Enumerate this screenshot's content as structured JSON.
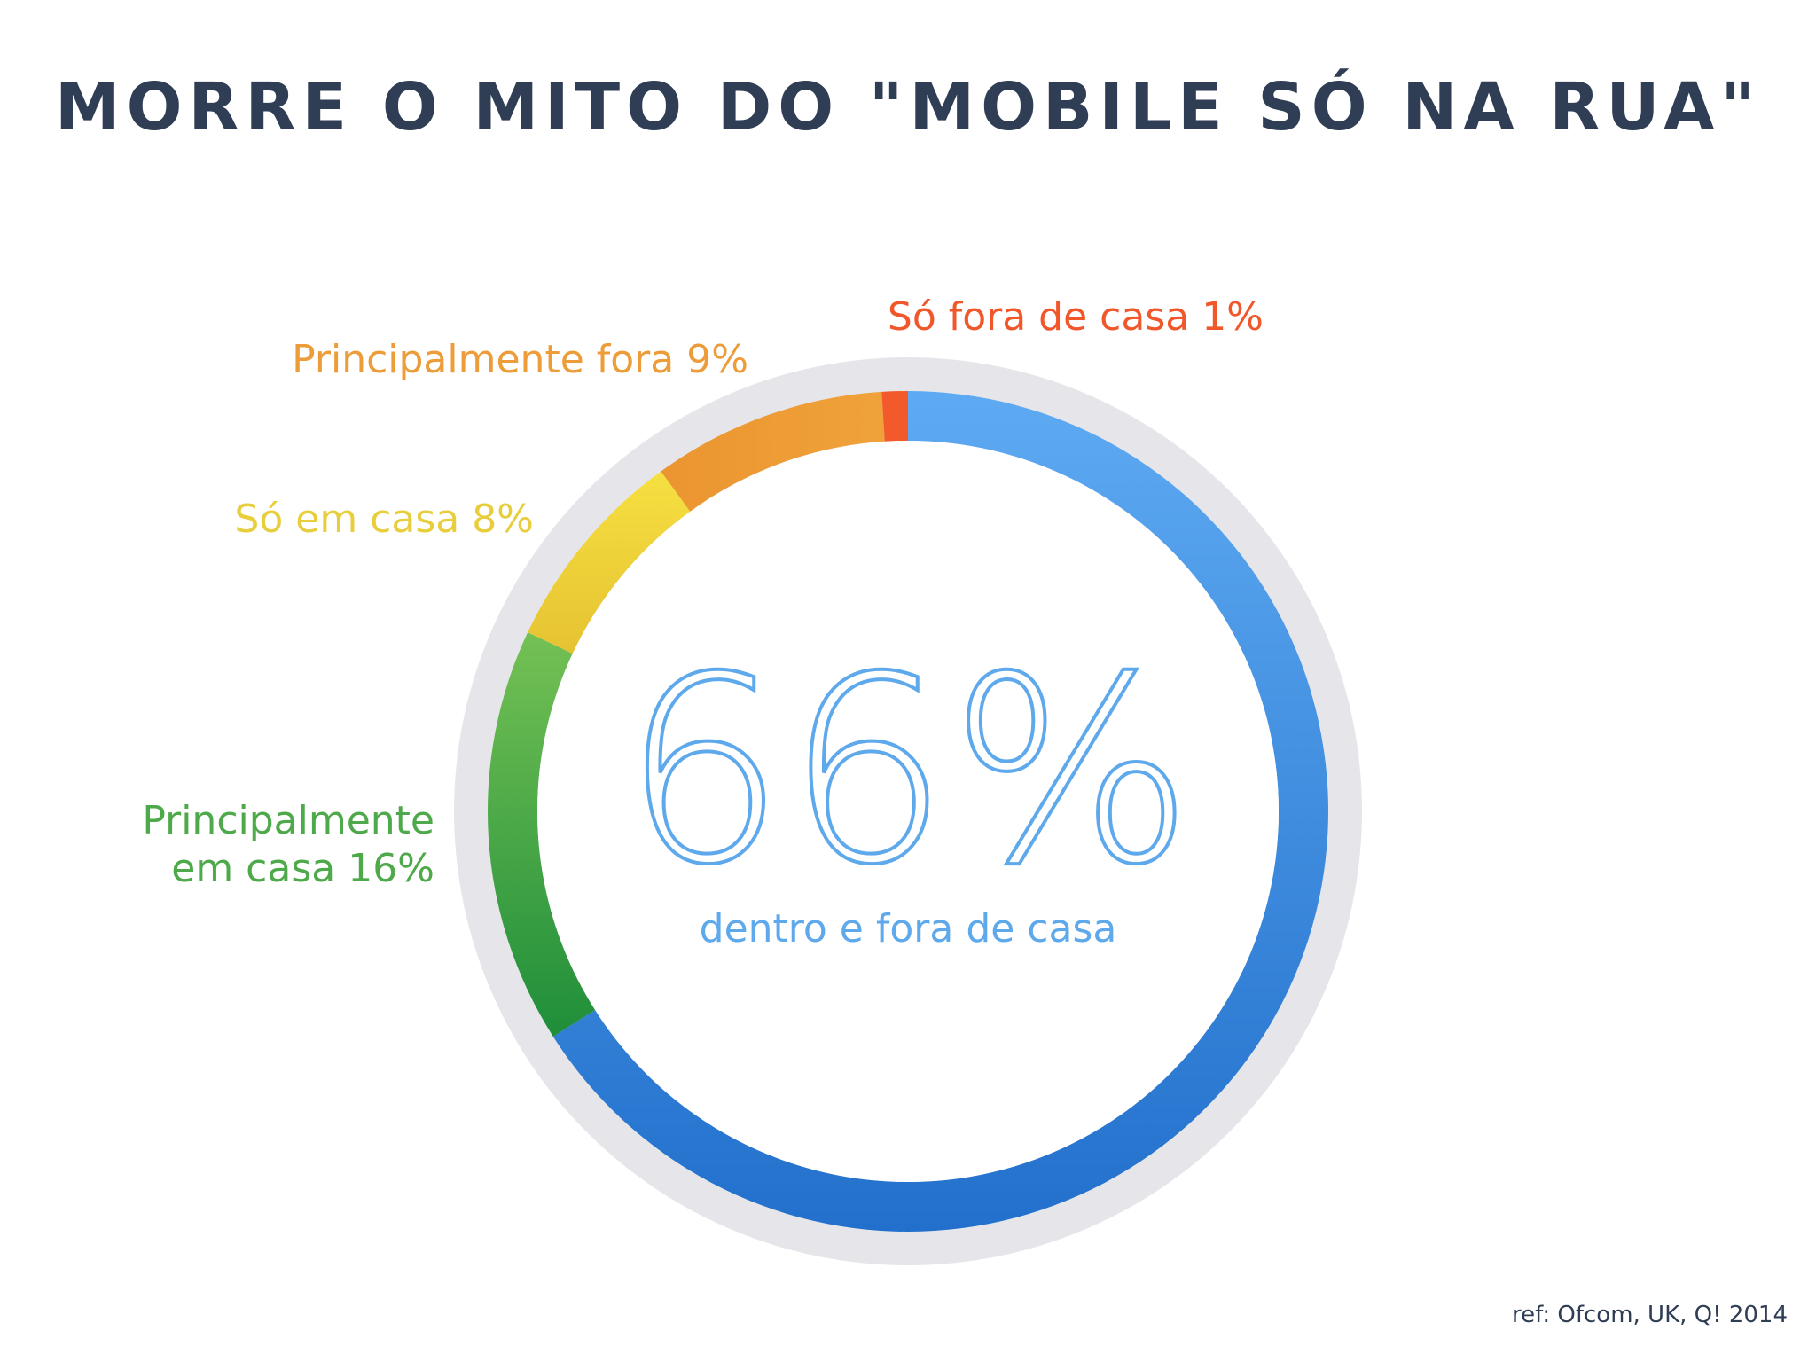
{
  "title": "MORRE O MITO DO \"MOBILE SÓ NA RUA\"",
  "chart_data": {
    "type": "pie",
    "style": "donut",
    "center_value": "66%",
    "center_label": "dentro e fora de casa",
    "series": [
      {
        "name": "dentro e fora de casa",
        "value": 66,
        "color": "#3d8fe4",
        "label_lines": []
      },
      {
        "name": "Principalmente em casa",
        "value": 16,
        "color": "#4fae4a",
        "label_lines": [
          "Principalmente",
          "em casa 16%"
        ]
      },
      {
        "name": "Só em casa",
        "value": 8,
        "color": "#f1d23a",
        "label_lines": [
          "Só em casa 8%"
        ]
      },
      {
        "name": "Principalmente fora",
        "value": 9,
        "color": "#ee9b32",
        "label_lines": [
          "Principalmente fora 9%"
        ]
      },
      {
        "name": "Só fora de casa",
        "value": 1,
        "color": "#f25a2c",
        "label_lines": [
          "Só fora de casa 1%"
        ]
      }
    ],
    "label_colors": {
      "Principalmente em casa": "#4ea94a",
      "Só em casa": "#e8cd3c",
      "Principalmente fora": "#ec9c38",
      "Só fora de casa": "#f0582c"
    },
    "center_color": "#5ea8ec"
  },
  "source": "ref: Ofcom, UK, Q! 2014"
}
